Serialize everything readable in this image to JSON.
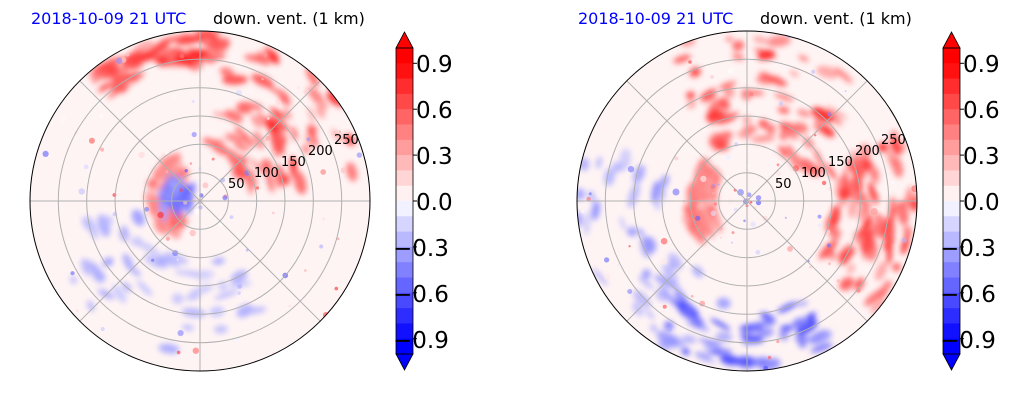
{
  "chart_data": [
    {
      "type": "heatmap",
      "projection": "polar",
      "time_label": "2018-10-09 21 UTC",
      "variable_label": "down. vent. (1 km)",
      "radial_tick_labels": [
        "50",
        "100",
        "150",
        "200",
        "250"
      ],
      "radial_ticks": [
        50,
        100,
        150,
        200,
        250
      ],
      "r_max": 300,
      "angular_gridlines_deg": [
        0,
        45,
        90,
        135,
        180,
        225,
        270,
        315
      ],
      "grid": true,
      "colormap": "bwr",
      "color_range": [
        -1.0,
        1.0
      ],
      "colorbar": {
        "extend": "both",
        "tick_labels": [
          "0.9",
          "0.6",
          "0.3",
          "0.0",
          "−0.3",
          "−0.6",
          "−0.9"
        ],
        "ticks": [
          0.9,
          0.6,
          0.3,
          0.0,
          -0.3,
          -0.6,
          -0.9
        ]
      },
      "features": [
        {
          "sign": "positive",
          "theta_deg": [
            10,
            80
          ],
          "r": [
            80,
            300
          ],
          "value": 0.9
        },
        {
          "sign": "positive",
          "theta_deg": [
            80,
            130
          ],
          "r": [
            240,
            300
          ],
          "value": 0.9
        },
        {
          "sign": "positive",
          "theta_deg": [
            120,
            230
          ],
          "r": [
            40,
            90
          ],
          "value": 0.6
        },
        {
          "sign": "negative",
          "theta_deg": [
            190,
            300
          ],
          "r": [
            100,
            280
          ],
          "value": -0.4
        },
        {
          "sign": "negative",
          "theta_deg": [
            140,
            200
          ],
          "r": [
            20,
            70
          ],
          "value": -0.6
        }
      ]
    },
    {
      "type": "heatmap",
      "projection": "polar",
      "time_label": "2018-10-09 21 UTC",
      "variable_label": "down. vent. (1 km)",
      "radial_tick_labels": [
        "50",
        "100",
        "150",
        "200",
        "250"
      ],
      "radial_ticks": [
        50,
        100,
        150,
        200,
        250
      ],
      "r_max": 300,
      "angular_gridlines_deg": [
        0,
        45,
        90,
        135,
        180,
        225,
        270,
        315
      ],
      "grid": true,
      "colormap": "bwr",
      "color_range": [
        -1.0,
        1.0
      ],
      "colorbar": {
        "extend": "both",
        "tick_labels": [
          "0.9",
          "0.6",
          "0.3",
          "0.0",
          "−0.3",
          "−0.6",
          "−0.9"
        ],
        "ticks": [
          0.9,
          0.6,
          0.3,
          0.0,
          -0.3,
          -0.6,
          -0.9
        ]
      },
      "features": [
        {
          "sign": "positive",
          "theta_deg": [
            20,
            120
          ],
          "r": [
            100,
            300
          ],
          "value": 0.9
        },
        {
          "sign": "positive",
          "theta_deg": [
            -40,
            20
          ],
          "r": [
            150,
            300
          ],
          "value": 0.9
        },
        {
          "sign": "positive",
          "theta_deg": [
            140,
            220
          ],
          "r": [
            60,
            110
          ],
          "value": 0.6
        },
        {
          "sign": "negative",
          "theta_deg": [
            160,
            260
          ],
          "r": [
            150,
            300
          ],
          "value": -0.5
        },
        {
          "sign": "negative",
          "theta_deg": [
            230,
            300
          ],
          "r": [
            200,
            300
          ],
          "value": -0.8
        }
      ]
    }
  ],
  "colors": {
    "time_label": "#0000ff",
    "positive_max": "#ff0000",
    "negative_max": "#0000ff",
    "gridline": "#b0b0b0"
  }
}
